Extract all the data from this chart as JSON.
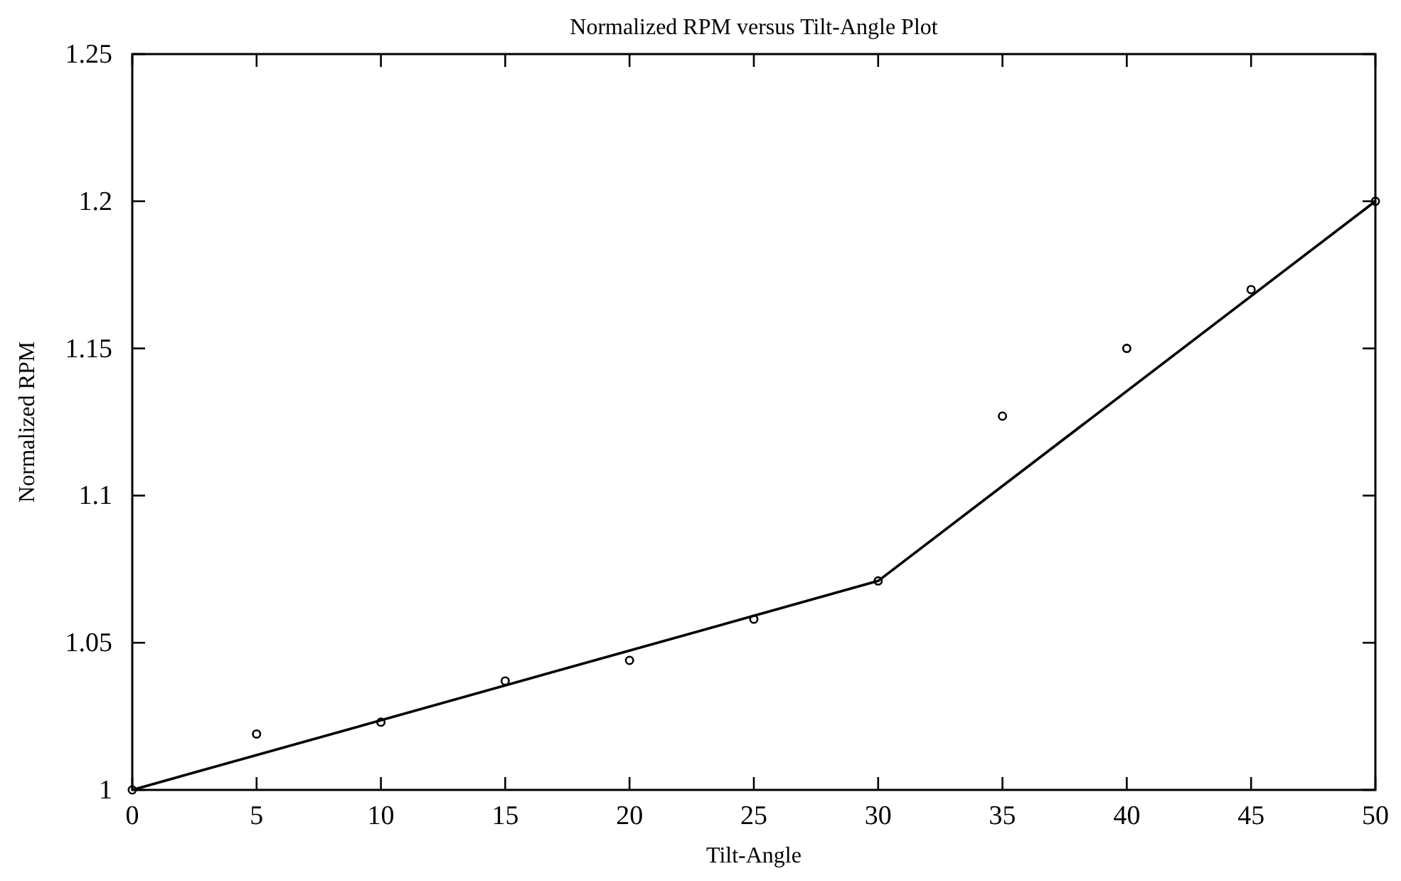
{
  "chart_data": {
    "type": "scatter",
    "title": "Normalized RPM versus Tilt-Angle Plot",
    "xlabel": "Tilt-Angle",
    "ylabel": "Normalized RPM",
    "xlim": [
      0,
      50
    ],
    "xticks": [
      0,
      5,
      10,
      15,
      20,
      25,
      30,
      35,
      40,
      45,
      50
    ],
    "ylim": [
      1,
      1.25
    ],
    "yticks": [
      1,
      1.05,
      1.1,
      1.15,
      1.2,
      1.25
    ],
    "grid": false,
    "marker": "circle",
    "series": [
      {
        "color": "#000000",
        "x": [
          0,
          5,
          10,
          15,
          20,
          25,
          30,
          35,
          40,
          45,
          50
        ],
        "values": [
          1,
          1.019,
          1.023,
          1.037,
          1.044,
          1.058,
          1.071,
          1.127,
          1.15,
          1.17,
          1.2
        ]
      },
      {
        "type": "line",
        "color": "#000000",
        "x": [
          0,
          30,
          50
        ],
        "values": [
          1,
          1.071,
          1.2
        ],
        "marker": "none",
        "line_style": "solid"
      }
    ]
  }
}
